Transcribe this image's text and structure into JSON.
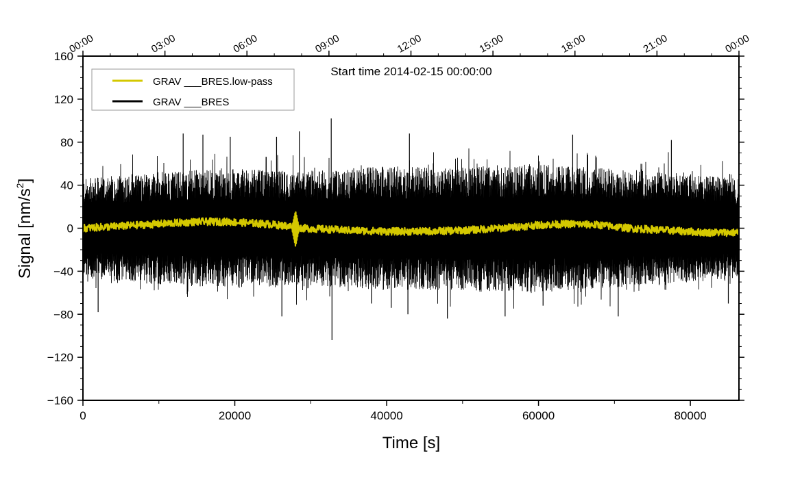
{
  "chart_data": {
    "type": "line",
    "title": "Start time 2014-02-15 00:00:00",
    "xlabel": "Time [s]",
    "ylabel": "Signal [nm/s",
    "ylabel_superscript": "2",
    "ylabel_suffix": "]",
    "xlim": [
      0,
      86400
    ],
    "ylim": [
      -160,
      160
    ],
    "x_ticks": [
      0,
      20000,
      40000,
      60000,
      80000
    ],
    "x_tick_labels": [
      "0",
      "20000",
      "40000",
      "60000",
      "80000"
    ],
    "y_ticks": [
      -160,
      -120,
      -80,
      -40,
      0,
      40,
      80,
      120,
      160
    ],
    "y_tick_labels": [
      "−160",
      "−120",
      "−80",
      "−40",
      "0",
      "40",
      "80",
      "120",
      "160"
    ],
    "top_time_ticks": [
      0,
      10800,
      21600,
      32400,
      43200,
      54000,
      64800,
      75600,
      86400
    ],
    "top_time_labels": [
      "00:00",
      "03:00",
      "06:00",
      "09:00",
      "12:00",
      "15:00",
      "18:00",
      "21:00",
      "00:00"
    ],
    "legend_position": "top-left",
    "series": [
      {
        "name": "GRAV ___BRES.low-pass",
        "color": "#d4c800",
        "trend_points": [
          [
            0,
            0
          ],
          [
            5000,
            2
          ],
          [
            10000,
            4
          ],
          [
            15000,
            6
          ],
          [
            19000,
            6
          ],
          [
            24000,
            4
          ],
          [
            27000,
            2
          ],
          [
            29000,
            0
          ],
          [
            35000,
            -2
          ],
          [
            40000,
            -3
          ],
          [
            45000,
            -3
          ],
          [
            50000,
            -2
          ],
          [
            55000,
            0
          ],
          [
            60000,
            3
          ],
          [
            64000,
            4
          ],
          [
            68000,
            3
          ],
          [
            72000,
            0
          ],
          [
            77000,
            -2
          ],
          [
            82000,
            -4
          ],
          [
            86400,
            -4
          ]
        ],
        "noise_amplitude": 3.5,
        "transient": {
          "x": 28000,
          "peak": 16,
          "trough": -17
        }
      },
      {
        "name": "GRAV ___BRES",
        "color": "#000000",
        "envelope_points": [
          [
            0,
            40
          ],
          [
            10000,
            46
          ],
          [
            20000,
            48
          ],
          [
            28000,
            46
          ],
          [
            40000,
            50
          ],
          [
            50000,
            50
          ],
          [
            60000,
            52
          ],
          [
            70000,
            48
          ],
          [
            80000,
            44
          ],
          [
            86400,
            40
          ]
        ],
        "typical_range": [
          -55,
          60
        ],
        "spikes": [
          {
            "x": 13200,
            "y": 88
          },
          {
            "x": 15800,
            "y": 87
          },
          {
            "x": 19400,
            "y": 85
          },
          {
            "x": 25500,
            "y": 85
          },
          {
            "x": 28500,
            "y": 90
          },
          {
            "x": 32700,
            "y": 102
          },
          {
            "x": 32800,
            "y": -104
          },
          {
            "x": 43000,
            "y": 88
          },
          {
            "x": 64500,
            "y": 87
          },
          {
            "x": 77500,
            "y": 82
          },
          {
            "x": 2000,
            "y": -78
          },
          {
            "x": 26200,
            "y": -82
          },
          {
            "x": 38000,
            "y": -70
          },
          {
            "x": 40600,
            "y": -74
          },
          {
            "x": 42800,
            "y": -80
          },
          {
            "x": 55600,
            "y": -82
          },
          {
            "x": 60600,
            "y": -72
          },
          {
            "x": 70500,
            "y": -82
          },
          {
            "x": 85000,
            "y": -70
          },
          {
            "x": 48000,
            "y": -84
          }
        ]
      }
    ]
  }
}
